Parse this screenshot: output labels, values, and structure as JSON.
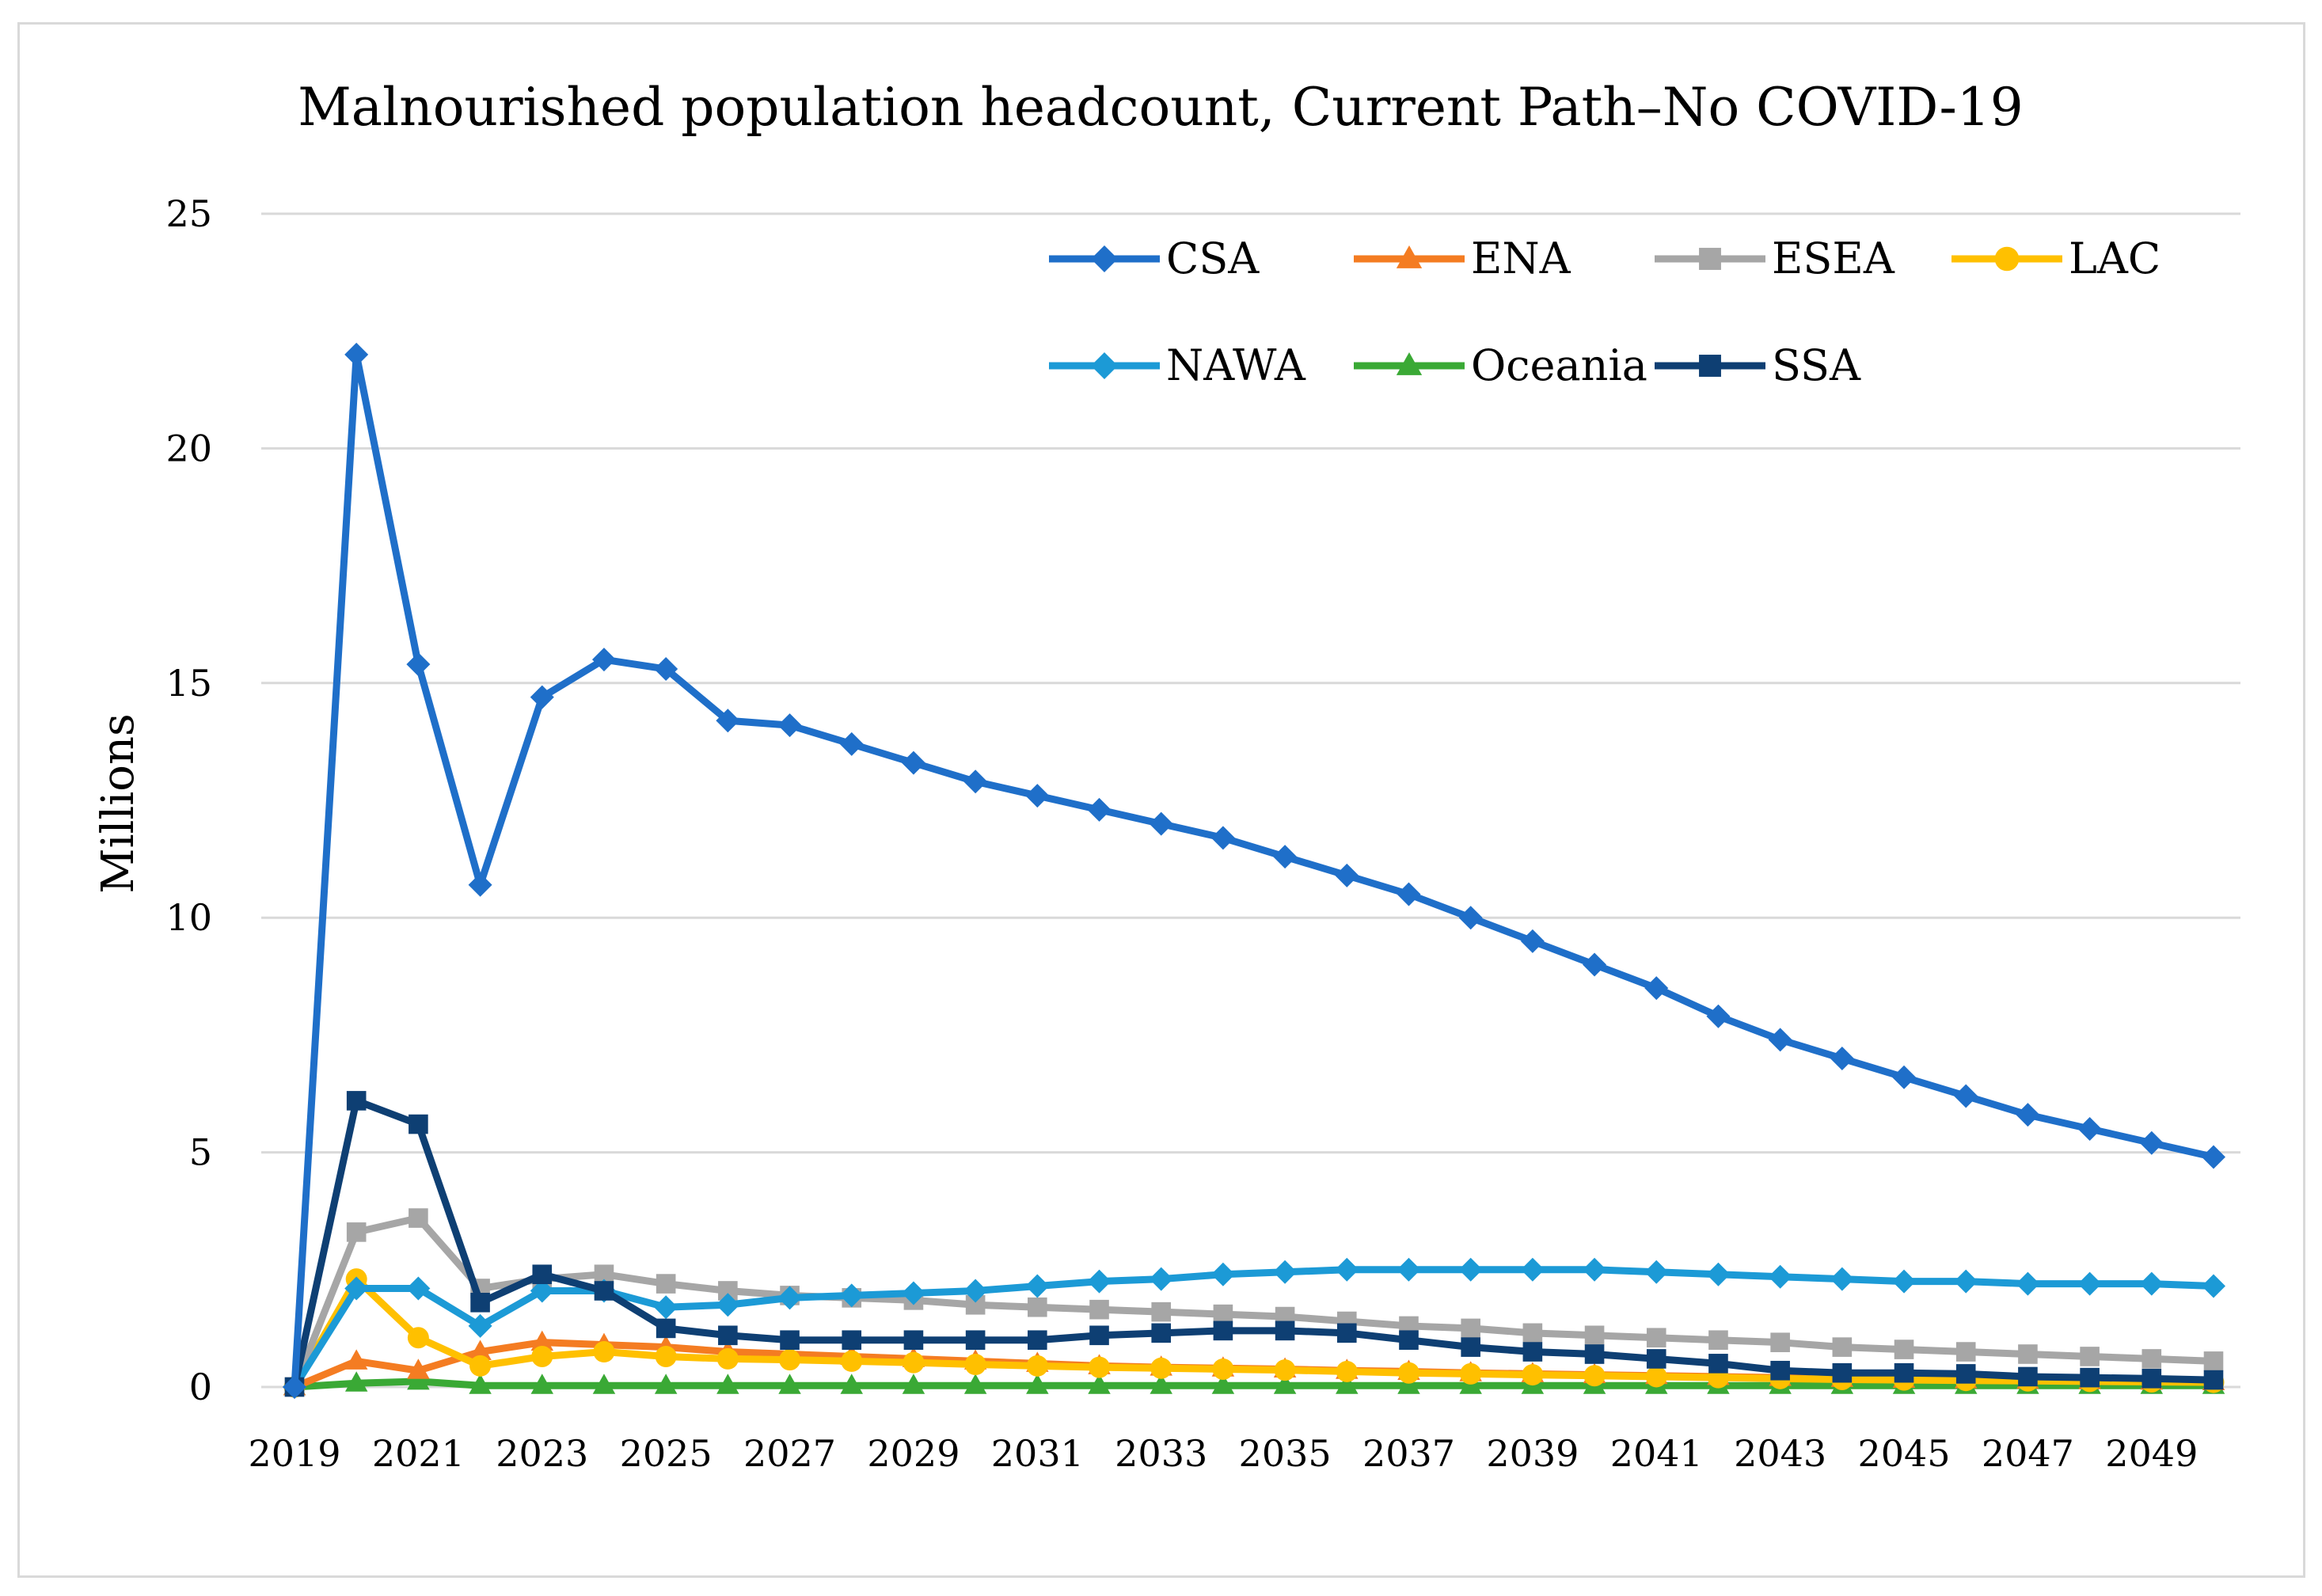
{
  "chart_data": {
    "type": "line",
    "title": "Malnourished population headcount, Current Path–No COVID-19",
    "xlabel": "",
    "ylabel": "Millions",
    "ylim": [
      0,
      25
    ],
    "yticks": [
      0,
      5,
      10,
      15,
      20,
      25
    ],
    "grid": true,
    "legend_position": "top-right",
    "x": [
      2019,
      2020,
      2021,
      2022,
      2023,
      2024,
      2025,
      2026,
      2027,
      2028,
      2029,
      2030,
      2031,
      2032,
      2033,
      2034,
      2035,
      2036,
      2037,
      2038,
      2039,
      2040,
      2041,
      2042,
      2043,
      2044,
      2045,
      2046,
      2047,
      2048,
      2049,
      2050
    ],
    "x_tick_labels": [
      "2019",
      "2021",
      "2023",
      "2025",
      "2027",
      "2029",
      "2031",
      "2033",
      "2035",
      "2037",
      "2039",
      "2041",
      "2043",
      "2045",
      "2047",
      "2049"
    ],
    "series": [
      {
        "name": "CSA",
        "color": "#1f6fc9",
        "marker": "diamond",
        "values": [
          0,
          22.0,
          15.4,
          10.7,
          14.7,
          15.5,
          15.3,
          14.2,
          14.1,
          13.7,
          13.3,
          12.9,
          12.6,
          12.3,
          12.0,
          11.7,
          11.3,
          10.9,
          10.5,
          10.0,
          9.5,
          9.0,
          8.5,
          7.9,
          7.4,
          7.0,
          6.6,
          6.2,
          5.8,
          5.5,
          5.2,
          4.9
        ]
      },
      {
        "name": "ENA",
        "color": "#f47c22",
        "marker": "triangle",
        "values": [
          0,
          0.55,
          0.35,
          0.75,
          0.95,
          0.9,
          0.85,
          0.75,
          0.7,
          0.65,
          0.6,
          0.55,
          0.5,
          0.45,
          0.42,
          0.4,
          0.38,
          0.35,
          0.33,
          0.3,
          0.28,
          0.26,
          0.24,
          0.22,
          0.2,
          0.18,
          0.16,
          0.15,
          0.14,
          0.13,
          0.12,
          0.11
        ]
      },
      {
        "name": "ESEA",
        "color": "#a6a6a6",
        "marker": "square",
        "values": [
          0,
          3.3,
          3.6,
          2.1,
          2.3,
          2.4,
          2.2,
          2.05,
          1.95,
          1.9,
          1.85,
          1.75,
          1.7,
          1.65,
          1.6,
          1.55,
          1.5,
          1.4,
          1.3,
          1.25,
          1.15,
          1.1,
          1.05,
          1.0,
          0.95,
          0.85,
          0.8,
          0.75,
          0.7,
          0.65,
          0.6,
          0.55
        ]
      },
      {
        "name": "LAC",
        "color": "#ffc000",
        "marker": "circle",
        "values": [
          0,
          2.3,
          1.05,
          0.45,
          0.65,
          0.75,
          0.65,
          0.6,
          0.58,
          0.55,
          0.52,
          0.48,
          0.45,
          0.42,
          0.4,
          0.38,
          0.36,
          0.33,
          0.3,
          0.28,
          0.26,
          0.24,
          0.22,
          0.2,
          0.18,
          0.16,
          0.15,
          0.14,
          0.13,
          0.12,
          0.11,
          0.1
        ]
      },
      {
        "name": "NAWA",
        "color": "#1c9ad6",
        "marker": "diamond",
        "values": [
          0,
          2.1,
          2.1,
          1.3,
          2.05,
          2.05,
          1.7,
          1.75,
          1.9,
          1.95,
          2.0,
          2.05,
          2.15,
          2.25,
          2.3,
          2.4,
          2.45,
          2.5,
          2.5,
          2.5,
          2.5,
          2.5,
          2.45,
          2.4,
          2.35,
          2.3,
          2.25,
          2.25,
          2.2,
          2.2,
          2.2,
          2.15
        ]
      },
      {
        "name": "Oceania",
        "color": "#3aa935",
        "marker": "triangle",
        "values": [
          0,
          0.08,
          0.12,
          0.03,
          0.03,
          0.03,
          0.03,
          0.03,
          0.03,
          0.03,
          0.03,
          0.03,
          0.03,
          0.03,
          0.03,
          0.03,
          0.03,
          0.03,
          0.03,
          0.03,
          0.03,
          0.03,
          0.03,
          0.03,
          0.03,
          0.03,
          0.03,
          0.03,
          0.03,
          0.03,
          0.03,
          0.03
        ]
      },
      {
        "name": "SSA",
        "color": "#0e3f73",
        "marker": "square",
        "values": [
          0,
          6.1,
          5.6,
          1.8,
          2.4,
          2.05,
          1.25,
          1.1,
          1.0,
          1.0,
          1.0,
          1.0,
          1.0,
          1.1,
          1.15,
          1.2,
          1.2,
          1.15,
          1.0,
          0.85,
          0.75,
          0.7,
          0.6,
          0.5,
          0.35,
          0.3,
          0.3,
          0.28,
          0.22,
          0.2,
          0.18,
          0.15
        ]
      }
    ]
  }
}
